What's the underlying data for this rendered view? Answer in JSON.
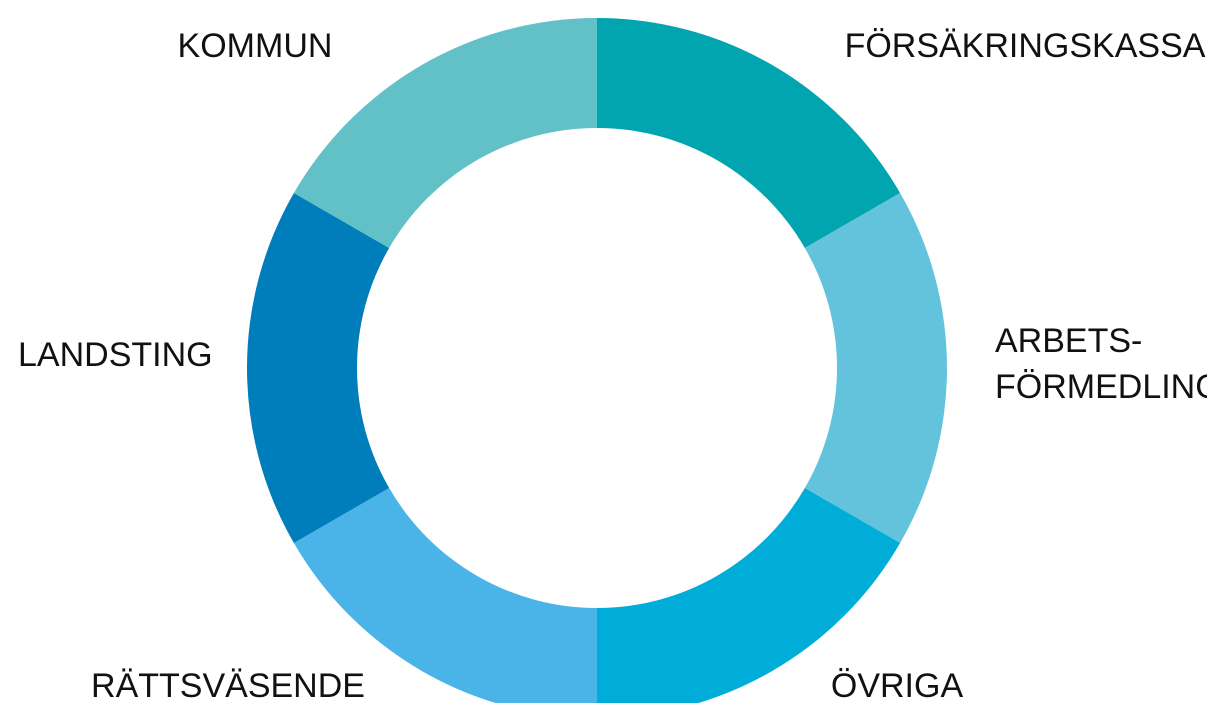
{
  "chart_data": {
    "type": "donut",
    "categories": [
      "FÖRSÄKRINGSKASSA",
      "ARBETS- FÖRMEDLING",
      "ÖVRIGA",
      "RÄTTSVÄSENDE",
      "LANDSTING",
      "KOMMUN"
    ],
    "values": [
      1,
      1,
      1,
      1,
      1,
      1
    ],
    "colors": [
      "#00a5b0",
      "#63c3dc",
      "#00acd8",
      "#4ab4e8",
      "#007dbb",
      "#62c1c7"
    ]
  }
}
